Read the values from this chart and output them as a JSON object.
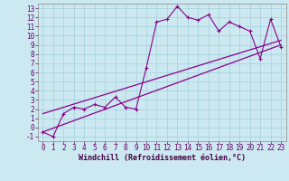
{
  "xlabel": "Windchill (Refroidissement éolien,°C)",
  "bg_color": "#cce8f0",
  "line_color": "#880088",
  "grid_color": "#aad4e0",
  "xlim": [
    -0.5,
    23.5
  ],
  "ylim": [
    -1.5,
    13.5
  ],
  "xticks": [
    0,
    1,
    2,
    3,
    4,
    5,
    6,
    7,
    8,
    9,
    10,
    11,
    12,
    13,
    14,
    15,
    16,
    17,
    18,
    19,
    20,
    21,
    22,
    23
  ],
  "yticks": [
    -1,
    0,
    1,
    2,
    3,
    4,
    5,
    6,
    7,
    8,
    9,
    10,
    11,
    12,
    13
  ],
  "line1_x": [
    0,
    1,
    2,
    3,
    4,
    5,
    6,
    7,
    8,
    9,
    10,
    11,
    12,
    13,
    14,
    15,
    16,
    17,
    18,
    19,
    20,
    21,
    22,
    23
  ],
  "line1_y": [
    -0.5,
    -1.0,
    1.5,
    2.2,
    2.0,
    2.5,
    2.2,
    3.3,
    2.2,
    2.0,
    6.5,
    11.5,
    11.8,
    13.2,
    12.0,
    11.7,
    12.3,
    10.5,
    11.5,
    11.0,
    10.5,
    7.5,
    11.8,
    8.8
  ],
  "line2_x": [
    0,
    23
  ],
  "line2_y": [
    -0.5,
    9.0
  ],
  "line3_x": [
    0,
    23
  ],
  "line3_y": [
    1.5,
    9.5
  ],
  "tick_fontsize": 5.5,
  "xlabel_fontsize": 6.0
}
